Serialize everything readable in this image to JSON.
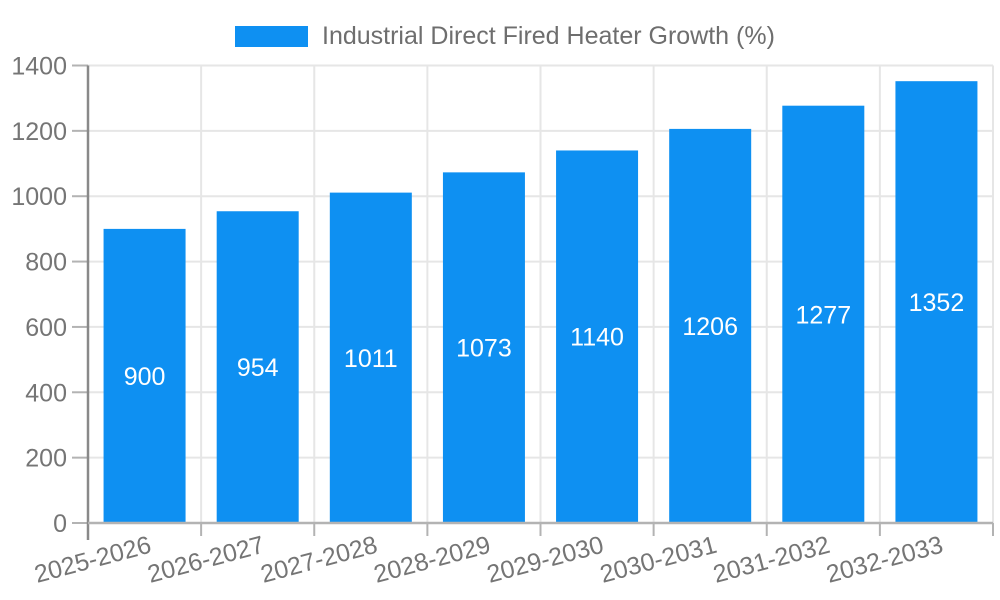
{
  "chart_data": {
    "type": "bar",
    "title": "",
    "legend": {
      "label": "Industrial Direct Fired Heater Growth (%)",
      "position": "top",
      "swatch_color": "#0e90f2"
    },
    "categories": [
      "2025-2026",
      "2026-2027",
      "2027-2028",
      "2028-2029",
      "2029-2030",
      "2030-2031",
      "2031-2032",
      "2032-2033"
    ],
    "series": [
      {
        "name": "Industrial Direct Fired Heater Growth (%)",
        "color": "#0e90f2",
        "values": [
          900,
          954,
          1011,
          1073,
          1140,
          1206,
          1277,
          1352
        ]
      }
    ],
    "data_labels": {
      "show": true,
      "color": "#ffffff",
      "position": "center-inside"
    },
    "xlabel": "",
    "ylabel": "",
    "ylim": [
      0,
      1400
    ],
    "y_ticks": [
      0,
      200,
      400,
      600,
      800,
      1000,
      1200,
      1400
    ],
    "x_tick_rotation_deg": -15,
    "grid": {
      "horizontal": true,
      "vertical": true,
      "color": "#e6e6e6"
    },
    "axis_colors": {
      "label": "#757575",
      "y_axis_line": "#898989",
      "x_axis_line": "#b3b3b3",
      "tick": "#b3b3b3"
    },
    "background": "#ffffff"
  }
}
